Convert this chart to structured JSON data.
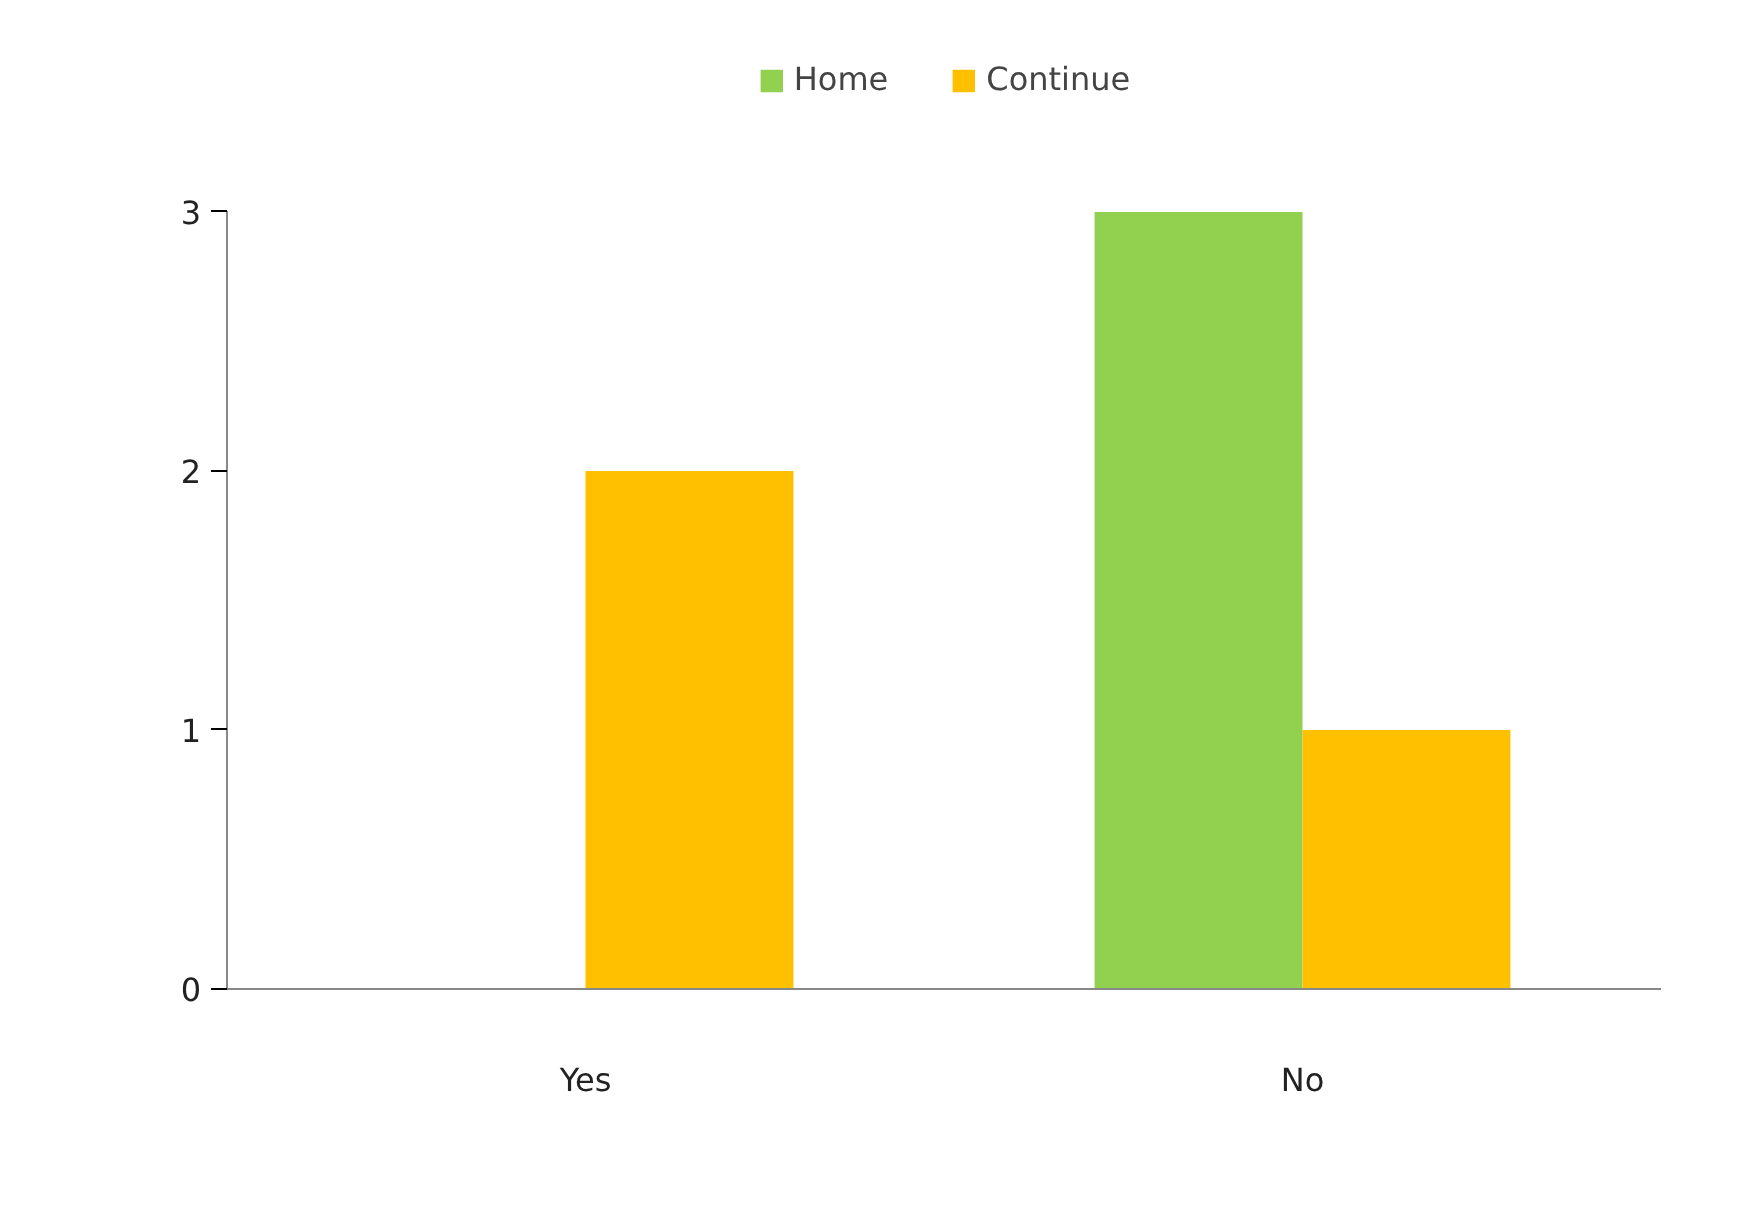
{
  "chart_data": {
    "type": "bar",
    "categories": [
      "Yes",
      "No"
    ],
    "series": [
      {
        "name": "Home",
        "color": "#92d050",
        "values": [
          0,
          3
        ]
      },
      {
        "name": "Continue",
        "color": "#ffc000",
        "values": [
          2,
          1
        ]
      }
    ],
    "ylim": [
      0,
      3
    ],
    "yticks": [
      0,
      1,
      2,
      3
    ],
    "grid": false,
    "legend": "top"
  }
}
